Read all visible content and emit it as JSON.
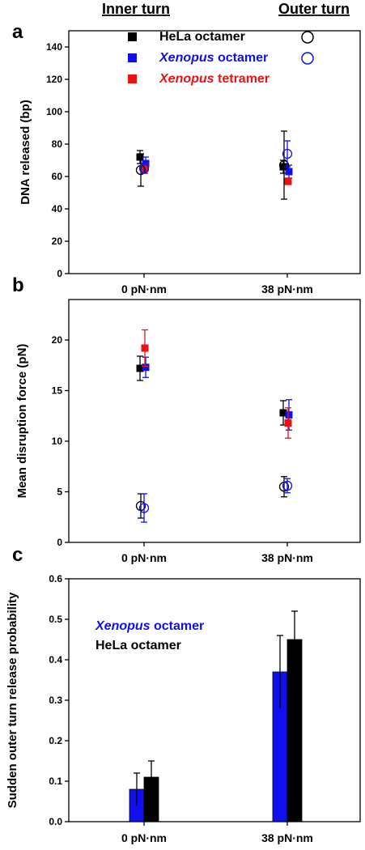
{
  "headers": {
    "inner": "Inner turn",
    "outer": "Outer turn"
  },
  "colors": {
    "hela": "#000000",
    "xenopus_octamer": "#1010ee",
    "xenopus_tetramer": "#ee1111"
  },
  "chart_data": [
    {
      "panel": "a",
      "type": "scatter",
      "ylabel": "DNA released (bp)",
      "categories": [
        "0 pN·nm",
        "38 pN·nm"
      ],
      "ylim": [
        0,
        150
      ],
      "yticks": [
        0,
        20,
        40,
        60,
        80,
        100,
        120,
        140
      ],
      "legend": [
        {
          "name_prefix": "",
          "name_italic": "",
          "name_suffix": "HeLa octamer",
          "color": "#000000",
          "marker": "square",
          "outer_marker": "circle"
        },
        {
          "name_prefix": "",
          "name_italic": "Xenopus",
          "name_suffix": " octamer",
          "color": "#1010ee",
          "marker": "square",
          "outer_marker": "circle"
        },
        {
          "name_prefix": "",
          "name_italic": "Xenopus",
          "name_suffix": " tetramer",
          "color": "#ee1111",
          "marker": "square",
          "outer_marker": ""
        }
      ],
      "series": [
        {
          "name": "HeLa octamer",
          "turn": "inner",
          "color": "#000000",
          "marker": "square",
          "values": [
            72,
            66
          ],
          "errors": [
            4,
            4
          ]
        },
        {
          "name": "Xenopus octamer",
          "turn": "inner",
          "color": "#1010ee",
          "marker": "square",
          "values": [
            68,
            63
          ],
          "errors": [
            4,
            4
          ]
        },
        {
          "name": "Xenopus tetramer",
          "turn": "inner",
          "color": "#ee1111",
          "marker": "square",
          "values": [
            65,
            57
          ],
          "errors": [
            3,
            2
          ]
        },
        {
          "name": "HeLa octamer",
          "turn": "outer",
          "color": "#000000",
          "marker": "circle",
          "values": [
            64,
            67
          ],
          "errors": [
            10,
            21
          ]
        },
        {
          "name": "Xenopus octamer",
          "turn": "outer",
          "color": "#1010ee",
          "marker": "circle",
          "values": [
            65,
            74
          ],
          "errors": [
            3,
            8
          ]
        }
      ]
    },
    {
      "panel": "b",
      "type": "scatter",
      "ylabel": "Mean disruption force (pN)",
      "categories": [
        "0 pN·nm",
        "38 pN·nm"
      ],
      "ylim": [
        0,
        24
      ],
      "yticks": [
        0,
        5,
        10,
        15,
        20
      ],
      "series": [
        {
          "name": "HeLa octamer",
          "turn": "inner",
          "color": "#000000",
          "marker": "square",
          "values": [
            17.2,
            12.8
          ],
          "errors": [
            1.2,
            1.2
          ]
        },
        {
          "name": "Xenopus octamer",
          "turn": "inner",
          "color": "#1010ee",
          "marker": "square",
          "values": [
            17.3,
            12.6
          ],
          "errors": [
            1.0,
            1.5
          ]
        },
        {
          "name": "Xenopus tetramer",
          "turn": "inner",
          "color": "#ee1111",
          "marker": "square",
          "values": [
            19.2,
            11.8
          ],
          "errors": [
            1.8,
            1.5
          ]
        },
        {
          "name": "HeLa octamer",
          "turn": "outer",
          "color": "#000000",
          "marker": "circle",
          "values": [
            3.6,
            5.5
          ],
          "errors": [
            1.2,
            1.0
          ]
        },
        {
          "name": "Xenopus octamer",
          "turn": "outer",
          "color": "#1010ee",
          "marker": "circle",
          "values": [
            3.4,
            5.6
          ],
          "errors": [
            1.4,
            0.7
          ]
        }
      ]
    },
    {
      "panel": "c",
      "type": "bar",
      "ylabel": "Sudden outer turn release probability",
      "categories": [
        "0 pN·nm",
        "38 pN·nm"
      ],
      "ylim": [
        0,
        0.6
      ],
      "yticks": [
        0.0,
        0.1,
        0.2,
        0.3,
        0.4,
        0.5,
        0.6
      ],
      "ytick_labels": [
        "0.0",
        "0.1",
        "0.2",
        "0.3",
        "0.4",
        "0.5",
        "0.6"
      ],
      "legend": [
        {
          "name_italic": "Xenopus",
          "name_suffix": " octamer",
          "color": "#1010ee"
        },
        {
          "name_italic": "",
          "name_suffix": "HeLa octamer",
          "color": "#000000"
        }
      ],
      "series": [
        {
          "name": "Xenopus octamer",
          "color": "#1010ee",
          "values": [
            0.08,
            0.37
          ],
          "errors": [
            0.04,
            0.09
          ]
        },
        {
          "name": "HeLa octamer",
          "color": "#000000",
          "values": [
            0.11,
            0.45
          ],
          "errors": [
            0.04,
            0.07
          ]
        }
      ]
    }
  ]
}
